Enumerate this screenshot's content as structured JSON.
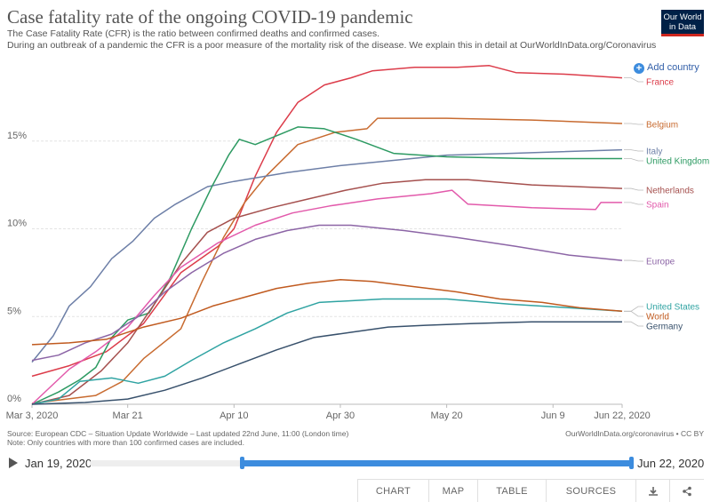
{
  "header": {
    "title": "Case fatality rate of the ongoing COVID-19 pandemic",
    "subtitle_line1": "The Case Fatality Rate (CFR) is the ratio between confirmed deaths and confirmed cases.",
    "subtitle_line2": "During an outbreak of a pandemic the CFR is a poor measure of the mortality risk of the disease. We explain this in detail at OurWorldInData.org/Coronavirus",
    "logo_line1": "Our World",
    "logo_line2": "in Data",
    "add_country": "Add country"
  },
  "colors": {
    "logo_bg": "#002147",
    "logo_bar": "#ce261e",
    "accent": "#3c8cde"
  },
  "chart_data": {
    "type": "line",
    "ylim": [
      0,
      20
    ],
    "yticks": [
      0,
      5,
      10,
      15
    ],
    "ytick_labels": [
      "0%",
      "5%",
      "10%",
      "15%"
    ],
    "x_start": "2020-03-03",
    "x_end": "2020-06-22",
    "xticks": [
      {
        "date": "2020-03-03",
        "label": "Mar 3, 2020"
      },
      {
        "date": "2020-03-21",
        "label": "Mar 21"
      },
      {
        "date": "2020-04-10",
        "label": "Apr 10"
      },
      {
        "date": "2020-04-30",
        "label": "Apr 30"
      },
      {
        "date": "2020-05-20",
        "label": "May 20"
      },
      {
        "date": "2020-06-09",
        "label": "Jun 9"
      },
      {
        "date": "2020-06-22",
        "label": "Jun 22, 2020"
      }
    ],
    "grid": "horizontal",
    "series": [
      {
        "name": "France",
        "color": "#dc3c4a",
        "points": [
          [
            "2020-03-03",
            1.6
          ],
          [
            "2020-03-10",
            2.2
          ],
          [
            "2020-03-17",
            3.0
          ],
          [
            "2020-03-24",
            4.6
          ],
          [
            "2020-03-31",
            7.5
          ],
          [
            "2020-04-07",
            9.0
          ],
          [
            "2020-04-10",
            10.0
          ],
          [
            "2020-04-14",
            13.0
          ],
          [
            "2020-04-18",
            15.5
          ],
          [
            "2020-04-22",
            17.2
          ],
          [
            "2020-04-27",
            18.2
          ],
          [
            "2020-05-02",
            18.6
          ],
          [
            "2020-05-06",
            19.0
          ],
          [
            "2020-05-14",
            19.2
          ],
          [
            "2020-05-22",
            19.2
          ],
          [
            "2020-05-28",
            19.3
          ],
          [
            "2020-06-02",
            18.9
          ],
          [
            "2020-06-12",
            18.8
          ],
          [
            "2020-06-22",
            18.6
          ]
        ]
      },
      {
        "name": "Belgium",
        "color": "#c86b30",
        "points": [
          [
            "2020-03-03",
            0.05
          ],
          [
            "2020-03-15",
            0.5
          ],
          [
            "2020-03-20",
            1.3
          ],
          [
            "2020-03-24",
            2.6
          ],
          [
            "2020-03-31",
            4.3
          ],
          [
            "2020-04-04",
            7.0
          ],
          [
            "2020-04-08",
            9.5
          ],
          [
            "2020-04-12",
            11.5
          ],
          [
            "2020-04-16",
            13.0
          ],
          [
            "2020-04-22",
            14.8
          ],
          [
            "2020-04-29",
            15.5
          ],
          [
            "2020-05-05",
            15.7
          ],
          [
            "2020-05-07",
            16.3
          ],
          [
            "2020-05-20",
            16.3
          ],
          [
            "2020-06-05",
            16.2
          ],
          [
            "2020-06-22",
            16.0
          ]
        ]
      },
      {
        "name": "Italy",
        "color": "#6d7fa7",
        "points": [
          [
            "2020-03-03",
            2.4
          ],
          [
            "2020-03-07",
            3.9
          ],
          [
            "2020-03-10",
            5.6
          ],
          [
            "2020-03-14",
            6.7
          ],
          [
            "2020-03-18",
            8.3
          ],
          [
            "2020-03-22",
            9.3
          ],
          [
            "2020-03-26",
            10.6
          ],
          [
            "2020-03-30",
            11.4
          ],
          [
            "2020-04-05",
            12.4
          ],
          [
            "2020-04-10",
            12.7
          ],
          [
            "2020-04-20",
            13.2
          ],
          [
            "2020-04-30",
            13.6
          ],
          [
            "2020-05-10",
            13.9
          ],
          [
            "2020-05-20",
            14.2
          ],
          [
            "2020-06-01",
            14.3
          ],
          [
            "2020-06-22",
            14.5
          ]
        ]
      },
      {
        "name": "United Kingdom",
        "color": "#2d9a62",
        "points": [
          [
            "2020-03-03",
            0.0
          ],
          [
            "2020-03-08",
            0.7
          ],
          [
            "2020-03-12",
            1.4
          ],
          [
            "2020-03-15",
            2.1
          ],
          [
            "2020-03-18",
            3.8
          ],
          [
            "2020-03-21",
            4.8
          ],
          [
            "2020-03-25",
            5.2
          ],
          [
            "2020-03-29",
            7.2
          ],
          [
            "2020-04-02",
            10.0
          ],
          [
            "2020-04-06",
            12.5
          ],
          [
            "2020-04-09",
            14.2
          ],
          [
            "2020-04-11",
            15.1
          ],
          [
            "2020-04-14",
            14.8
          ],
          [
            "2020-04-18",
            15.3
          ],
          [
            "2020-04-22",
            15.8
          ],
          [
            "2020-04-27",
            15.7
          ],
          [
            "2020-05-03",
            15.1
          ],
          [
            "2020-05-10",
            14.3
          ],
          [
            "2020-05-20",
            14.1
          ],
          [
            "2020-06-05",
            14.0
          ],
          [
            "2020-06-22",
            14.0
          ]
        ]
      },
      {
        "name": "Netherlands",
        "color": "#a5504e",
        "points": [
          [
            "2020-03-03",
            0.0
          ],
          [
            "2020-03-10",
            0.5
          ],
          [
            "2020-03-16",
            1.9
          ],
          [
            "2020-03-21",
            3.5
          ],
          [
            "2020-03-26",
            5.7
          ],
          [
            "2020-03-31",
            8.0
          ],
          [
            "2020-04-05",
            9.8
          ],
          [
            "2020-04-10",
            10.6
          ],
          [
            "2020-04-17",
            11.2
          ],
          [
            "2020-04-24",
            11.7
          ],
          [
            "2020-05-01",
            12.2
          ],
          [
            "2020-05-08",
            12.6
          ],
          [
            "2020-05-16",
            12.8
          ],
          [
            "2020-05-24",
            12.8
          ],
          [
            "2020-06-05",
            12.5
          ],
          [
            "2020-06-22",
            12.3
          ]
        ]
      },
      {
        "name": "Spain",
        "color": "#e25aab",
        "points": [
          [
            "2020-03-03",
            0.0
          ],
          [
            "2020-03-10",
            2.0
          ],
          [
            "2020-03-15",
            3.0
          ],
          [
            "2020-03-21",
            4.4
          ],
          [
            "2020-03-26",
            6.2
          ],
          [
            "2020-03-31",
            7.8
          ],
          [
            "2020-04-07",
            9.2
          ],
          [
            "2020-04-14",
            10.2
          ],
          [
            "2020-04-21",
            10.9
          ],
          [
            "2020-04-28",
            11.3
          ],
          [
            "2020-05-07",
            11.7
          ],
          [
            "2020-05-17",
            12.0
          ],
          [
            "2020-05-21",
            12.2
          ],
          [
            "2020-05-24",
            11.4
          ],
          [
            "2020-06-05",
            11.2
          ],
          [
            "2020-06-17",
            11.1
          ],
          [
            "2020-06-18",
            11.5
          ],
          [
            "2020-06-22",
            11.5
          ]
        ]
      },
      {
        "name": "Europe",
        "color": "#8c65a6",
        "points": [
          [
            "2020-03-03",
            2.5
          ],
          [
            "2020-03-08",
            2.8
          ],
          [
            "2020-03-13",
            3.5
          ],
          [
            "2020-03-18",
            4.0
          ],
          [
            "2020-03-23",
            5.0
          ],
          [
            "2020-03-28",
            6.4
          ],
          [
            "2020-04-02",
            7.5
          ],
          [
            "2020-04-08",
            8.6
          ],
          [
            "2020-04-14",
            9.4
          ],
          [
            "2020-04-20",
            9.9
          ],
          [
            "2020-04-26",
            10.2
          ],
          [
            "2020-05-02",
            10.2
          ],
          [
            "2020-05-12",
            9.9
          ],
          [
            "2020-05-22",
            9.5
          ],
          [
            "2020-06-02",
            9.0
          ],
          [
            "2020-06-12",
            8.5
          ],
          [
            "2020-06-22",
            8.2
          ]
        ]
      },
      {
        "name": "United States",
        "color": "#2fa3a2",
        "points": [
          [
            "2020-03-03",
            0.0
          ],
          [
            "2020-03-08",
            0.3
          ],
          [
            "2020-03-12",
            1.3
          ],
          [
            "2020-03-18",
            1.5
          ],
          [
            "2020-03-23",
            1.2
          ],
          [
            "2020-03-28",
            1.6
          ],
          [
            "2020-04-02",
            2.5
          ],
          [
            "2020-04-08",
            3.5
          ],
          [
            "2020-04-14",
            4.3
          ],
          [
            "2020-04-20",
            5.2
          ],
          [
            "2020-04-26",
            5.8
          ],
          [
            "2020-05-02",
            5.9
          ],
          [
            "2020-05-08",
            6.0
          ],
          [
            "2020-05-20",
            6.0
          ],
          [
            "2020-06-01",
            5.7
          ],
          [
            "2020-06-12",
            5.5
          ],
          [
            "2020-06-22",
            5.3
          ]
        ]
      },
      {
        "name": "World",
        "color": "#c05a1f",
        "points": [
          [
            "2020-03-03",
            3.4
          ],
          [
            "2020-03-10",
            3.5
          ],
          [
            "2020-03-17",
            3.7
          ],
          [
            "2020-03-24",
            4.4
          ],
          [
            "2020-03-31",
            4.9
          ],
          [
            "2020-04-06",
            5.6
          ],
          [
            "2020-04-12",
            6.1
          ],
          [
            "2020-04-18",
            6.6
          ],
          [
            "2020-04-24",
            6.9
          ],
          [
            "2020-04-30",
            7.1
          ],
          [
            "2020-05-06",
            7.0
          ],
          [
            "2020-05-14",
            6.7
          ],
          [
            "2020-05-22",
            6.4
          ],
          [
            "2020-05-30",
            6.0
          ],
          [
            "2020-06-07",
            5.8
          ],
          [
            "2020-06-14",
            5.5
          ],
          [
            "2020-06-22",
            5.3
          ]
        ]
      },
      {
        "name": "Germany",
        "color": "#38516c",
        "points": [
          [
            "2020-03-03",
            0.0
          ],
          [
            "2020-03-13",
            0.1
          ],
          [
            "2020-03-21",
            0.3
          ],
          [
            "2020-03-28",
            0.8
          ],
          [
            "2020-04-04",
            1.5
          ],
          [
            "2020-04-11",
            2.3
          ],
          [
            "2020-04-18",
            3.1
          ],
          [
            "2020-04-25",
            3.8
          ],
          [
            "2020-05-02",
            4.1
          ],
          [
            "2020-05-09",
            4.4
          ],
          [
            "2020-05-16",
            4.5
          ],
          [
            "2020-05-25",
            4.6
          ],
          [
            "2020-06-05",
            4.7
          ],
          [
            "2020-06-22",
            4.7
          ]
        ]
      }
    ]
  },
  "footer": {
    "source": "Source: European CDC – Situation Update Worldwide – Last updated 22nd June, 11:00 (London time)",
    "note": "Note: Only countries with more than 100 confirmed cases are included.",
    "right": "OurWorldInData.org/coronavirus • CC BY"
  },
  "timeline": {
    "start_label": "Jan 19, 2020",
    "end_label": "Jun 22, 2020",
    "selected_from": "2020-03-03",
    "selected_to": "2020-06-22"
  },
  "tabs": [
    "CHART",
    "MAP",
    "TABLE",
    "SOURCES"
  ],
  "icons": {
    "download": "download-icon",
    "share": "share-icon"
  }
}
